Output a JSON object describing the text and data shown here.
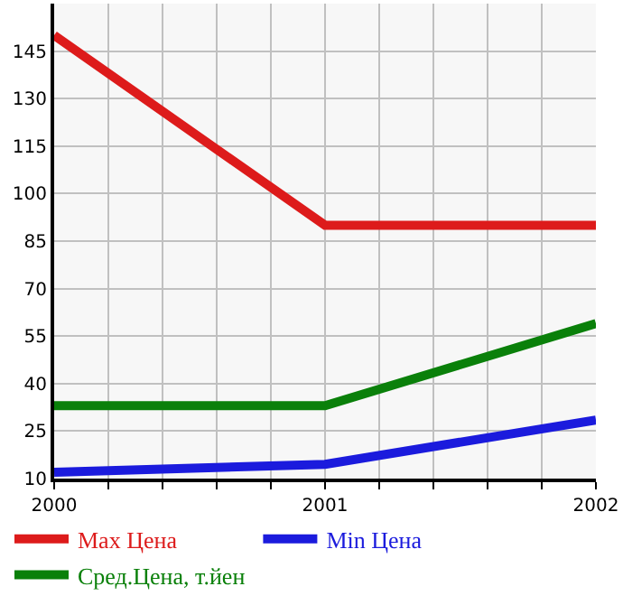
{
  "chart_data": {
    "type": "line",
    "x": [
      2000,
      2001,
      2002
    ],
    "series": [
      {
        "name": "Max Цена",
        "color": "#dd1b1b",
        "values": [
          150,
          90,
          90
        ]
      },
      {
        "name": "Min Цена",
        "color": "#1b1bdd",
        "values": [
          12,
          14.5,
          28.5
        ]
      },
      {
        "name": "Сред.Цена, т.йен",
        "color": "#0a800a",
        "values": [
          33,
          33,
          59
        ]
      }
    ],
    "xlim": [
      2000,
      2002
    ],
    "xticks": [
      2000,
      {
        "value": 2000.2,
        "label": null
      },
      {
        "value": 2000.4,
        "label": null
      },
      {
        "value": 2000.6,
        "label": null
      },
      {
        "value": 2000.8,
        "label": null
      },
      2001,
      {
        "value": 2001.2,
        "label": null
      },
      {
        "value": 2001.4,
        "label": null
      },
      {
        "value": 2001.6,
        "label": null
      },
      {
        "value": 2001.8,
        "label": null
      },
      2002
    ],
    "ylim": [
      10,
      160
    ],
    "yticks": [
      10,
      25,
      40,
      55,
      70,
      85,
      100,
      115,
      130,
      145,
      {
        "value": 160,
        "label": null
      }
    ],
    "grid": true,
    "legend": "bottom",
    "marker": "none",
    "line_style": "solid"
  }
}
